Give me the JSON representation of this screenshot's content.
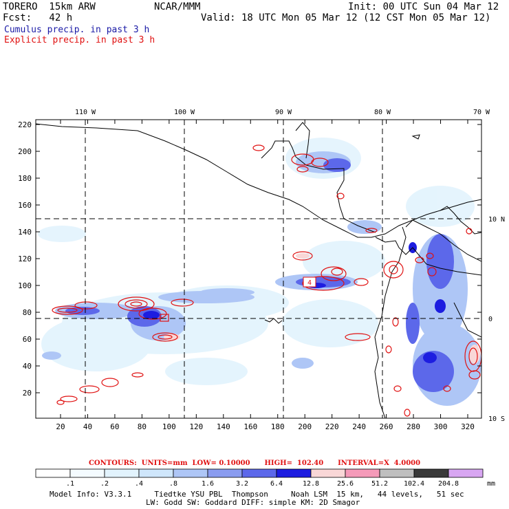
{
  "header": {
    "model": "TORERO  15km ARW",
    "center": "NCAR/MMM",
    "init": "Init: 00 UTC Sun 04 Mar 12",
    "fcst": "Fcst:   42 h",
    "valid": "Valid: 18 UTC Mon 05 Mar 12 (12 CST Mon 05 Mar 12)",
    "cumulus": "Cumulus precip. in past 3 h",
    "explicit": "Explicit precip. in past 3 h"
  },
  "colors": {
    "cumulus_text": "#1a1aa6",
    "explicit_text": "#e01010",
    "contour": "#e01010"
  },
  "axes": {
    "top_labels": [
      "110 W",
      "100 W",
      "90 W",
      "80 W",
      "70 W"
    ],
    "right_labels": [
      "10 N",
      "0",
      "10 S"
    ],
    "x_ticks": [
      "20",
      "40",
      "60",
      "80",
      "100",
      "120",
      "140",
      "160",
      "180",
      "200",
      "220",
      "240",
      "260",
      "280",
      "300",
      "320"
    ],
    "y_ticks": [
      "20",
      "40",
      "60",
      "80",
      "100",
      "120",
      "140",
      "160",
      "180",
      "200",
      "220"
    ],
    "box_label": "4"
  },
  "contours": "CONTOURS:  UNITS=mm  LOW= 0.10000      HIGH=  102.40      INTERVAL=X  4.0000",
  "colorbar": {
    "labels": [
      ".1",
      ".2",
      ".4",
      ".8",
      "1.6",
      "3.2",
      "6.4",
      "12.8",
      "25.6",
      "51.2",
      "102.4",
      "204.8"
    ],
    "unit": "mm",
    "colors": [
      "#ffffff",
      "#f4fbff",
      "#e2f3fd",
      "#cfe6fb",
      "#aec6f6",
      "#8a9cf0",
      "#5c68ea",
      "#1d1de0",
      "#f9d7d7",
      "#f59ab9",
      "#bfbfbf",
      "#3a3a3a",
      "#d8a6f2"
    ]
  },
  "model_info": {
    "line1": "Model Info: V3.3.1     Tiedtke YSU PBL  Thompson     Noah LSM  15 km,   44 levels,   51 sec",
    "line2": "LW: Godd SW: Goddard DIFF: simple KM: 2D Smagor"
  }
}
